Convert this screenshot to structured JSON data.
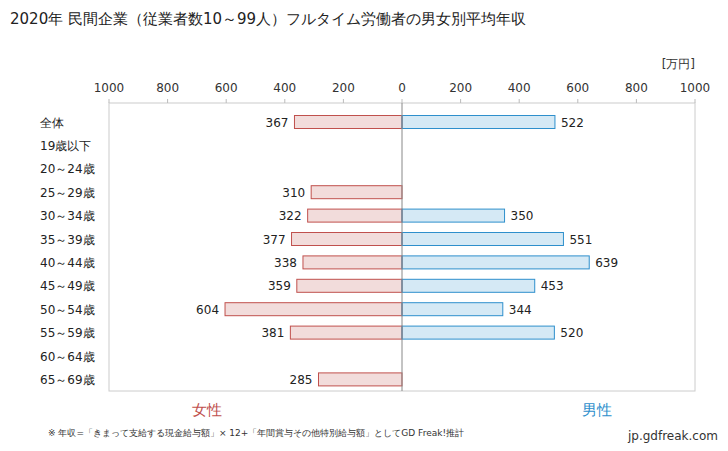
{
  "chart_data": {
    "type": "butterfly",
    "orientation": "horizontal",
    "title": "2020年 民間企業（従業者数10～99人）フルタイム労働者の男女別平均年収",
    "xlabel": "[万円]",
    "categories": [
      "全体",
      "19歳以下",
      "20～24歳",
      "25～29歳",
      "30～34歳",
      "35～39歳",
      "40～44歳",
      "45～49歳",
      "50～54歳",
      "55～59歳",
      "60～64歳",
      "65～69歳"
    ],
    "series": [
      {
        "name": "女性",
        "color": "#c0504d",
        "values": [
          367,
          null,
          null,
          310,
          322,
          377,
          338,
          359,
          604,
          381,
          null,
          285
        ]
      },
      {
        "name": "男性",
        "color": "#2e8fcc",
        "values": [
          522,
          null,
          null,
          null,
          350,
          551,
          639,
          453,
          344,
          520,
          null,
          null
        ]
      }
    ],
    "xlim": [
      0,
      1000
    ],
    "xticks": [
      0,
      200,
      400,
      600,
      800,
      1000
    ],
    "grid": false,
    "data_labels": true,
    "annotations": [
      "※ 年収=「きまって支給する現金給与額」× 12+「年間賞与その他特別給与額」としてGD Freak!推計",
      "jp.gdfreak.com"
    ]
  }
}
